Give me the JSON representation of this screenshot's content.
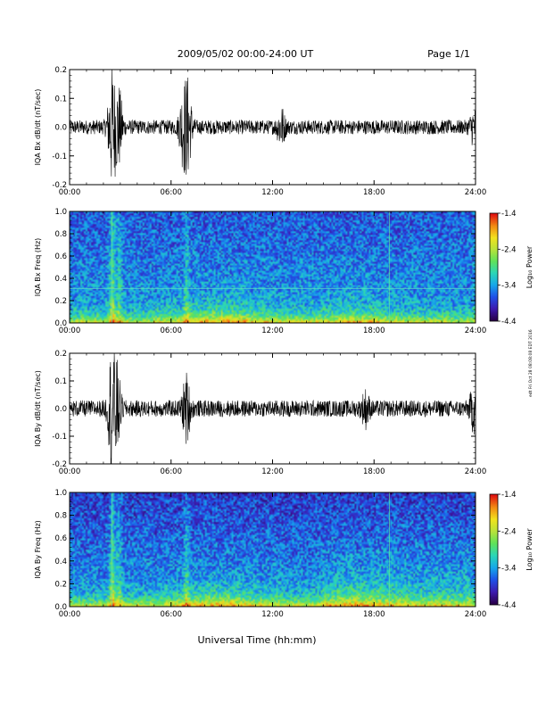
{
  "header": {
    "title": "2009/05/02  00:00-24:00 UT",
    "page_label": "Page 1/1"
  },
  "x_axis_title": "Universal Time (hh:mm)",
  "side_stamp": "edt Fri Oct 28 08:08:08 EDT 2016",
  "colors": {
    "trace": "#000000",
    "spectrogram_colormap": [
      "#2a004a",
      "#3d1bb0",
      "#1f52e8",
      "#17a8ea",
      "#2bd6b8",
      "#5fe25a",
      "#b8e23a",
      "#f2e21e",
      "#f28a14",
      "#e01010"
    ]
  },
  "chart_data": [
    {
      "type": "line",
      "ylabel": "IQA Bx dB/dt (nT/sec)",
      "xlim": [
        0,
        24
      ],
      "ylim": [
        -0.2,
        0.2
      ],
      "x_tick_labels": [
        "00:00",
        "06:00",
        "12:00",
        "18:00",
        "24:00"
      ],
      "y_tick_labels": [
        "-0.2",
        "-0.1",
        "0.0",
        "0.1",
        "0.2"
      ],
      "bursts": [
        {
          "t": 2.5,
          "amp": 0.2
        },
        {
          "t": 2.9,
          "amp": 0.13
        },
        {
          "t": 6.7,
          "amp": 0.11
        },
        {
          "t": 7.0,
          "amp": 0.14
        },
        {
          "t": 12.5,
          "amp": 0.06
        },
        {
          "t": 23.9,
          "amp": 0.05
        }
      ],
      "baseline_amp": 0.025
    },
    {
      "type": "heatmap",
      "ylabel": "IQA Bx Freq (Hz)",
      "xlim": [
        0,
        24
      ],
      "ylim": [
        0.0,
        1.0
      ],
      "x_tick_labels": [
        "00:00",
        "06:00",
        "12:00",
        "18:00",
        "24:00"
      ],
      "y_tick_labels": [
        "0.0",
        "0.2",
        "0.4",
        "0.6",
        "0.8",
        "1.0"
      ],
      "colorbar": {
        "label": "Log₁₀ Power",
        "range": [
          -4.4,
          -1.4
        ],
        "tick_labels": [
          "-1.4",
          "-2.4",
          "-3.4",
          "-4.4"
        ]
      },
      "lines": [
        {
          "orientation": "horizontal",
          "value": 0.31
        },
        {
          "orientation": "vertical",
          "value": 2.5
        },
        {
          "orientation": "vertical",
          "value": 18.9
        }
      ]
    },
    {
      "type": "line",
      "ylabel": "IQA By dB/dt (nT/sec)",
      "xlim": [
        0,
        24
      ],
      "ylim": [
        -0.2,
        0.2
      ],
      "x_tick_labels": [
        "00:00",
        "06:00",
        "12:00",
        "18:00",
        "24:00"
      ],
      "y_tick_labels": [
        "-0.2",
        "-0.1",
        "0.0",
        "0.1",
        "0.2"
      ],
      "bursts": [
        {
          "t": 2.5,
          "amp": 0.2
        },
        {
          "t": 2.8,
          "amp": 0.13
        },
        {
          "t": 6.9,
          "amp": 0.11
        },
        {
          "t": 17.5,
          "amp": 0.05
        },
        {
          "t": 23.9,
          "amp": 0.07
        }
      ],
      "baseline_amp": 0.03
    },
    {
      "type": "heatmap",
      "ylabel": "IQA By Freq (Hz)",
      "xlim": [
        0,
        24
      ],
      "ylim": [
        0.0,
        1.0
      ],
      "x_tick_labels": [
        "00:00",
        "06:00",
        "12:00",
        "18:00",
        "24:00"
      ],
      "y_tick_labels": [
        "0.0",
        "0.2",
        "0.4",
        "0.6",
        "0.8",
        "1.0"
      ],
      "colorbar": {
        "label": "Log₁₀ Power",
        "range": [
          -4.4,
          -1.4
        ],
        "tick_labels": [
          "-1.4",
          "-2.4",
          "-3.4",
          "-4.4"
        ]
      },
      "lines": [
        {
          "orientation": "vertical",
          "value": 2.5
        },
        {
          "orientation": "vertical",
          "value": 18.9
        }
      ]
    }
  ]
}
